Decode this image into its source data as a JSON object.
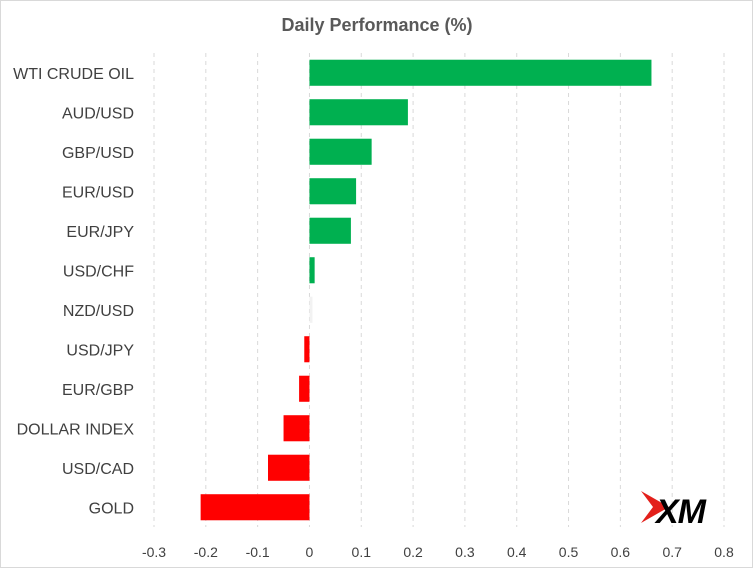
{
  "chart_data": {
    "type": "bar",
    "orientation": "horizontal",
    "title": "Daily Performance  (%)",
    "xlabel": "",
    "ylabel": "",
    "categories": [
      "WTI CRUDE OIL",
      "AUD/USD",
      "GBP/USD",
      "EUR/USD",
      "EUR/JPY",
      "USD/CHF",
      "NZD/USD",
      "USD/JPY",
      "EUR/GBP",
      "DOLLAR INDEX",
      "USD/CAD",
      "GOLD"
    ],
    "values": [
      0.66,
      0.19,
      0.12,
      0.09,
      0.08,
      0.01,
      0.0,
      -0.01,
      -0.02,
      -0.05,
      -0.08,
      -0.21
    ],
    "xlim": [
      -0.3,
      0.8
    ],
    "xticks": [
      -0.3,
      -0.2,
      -0.1,
      0,
      0.1,
      0.2,
      0.3,
      0.4,
      0.5,
      0.6,
      0.7,
      0.8
    ],
    "xtick_labels": [
      "-0.3",
      "-0.2",
      "-0.1",
      "0",
      "0.1",
      "0.2",
      "0.3",
      "0.4",
      "0.5",
      "0.6",
      "0.7",
      "0.8"
    ],
    "grid": "vertical dashed",
    "legend": "none",
    "colors": {
      "positive": "#00b050",
      "negative": "#ff0000",
      "zero": "#f2f2f2",
      "grid": "#d9d9d9",
      "text": "#404040"
    }
  },
  "logo": {
    "text": "XM",
    "accent_color": "#e3201b"
  }
}
